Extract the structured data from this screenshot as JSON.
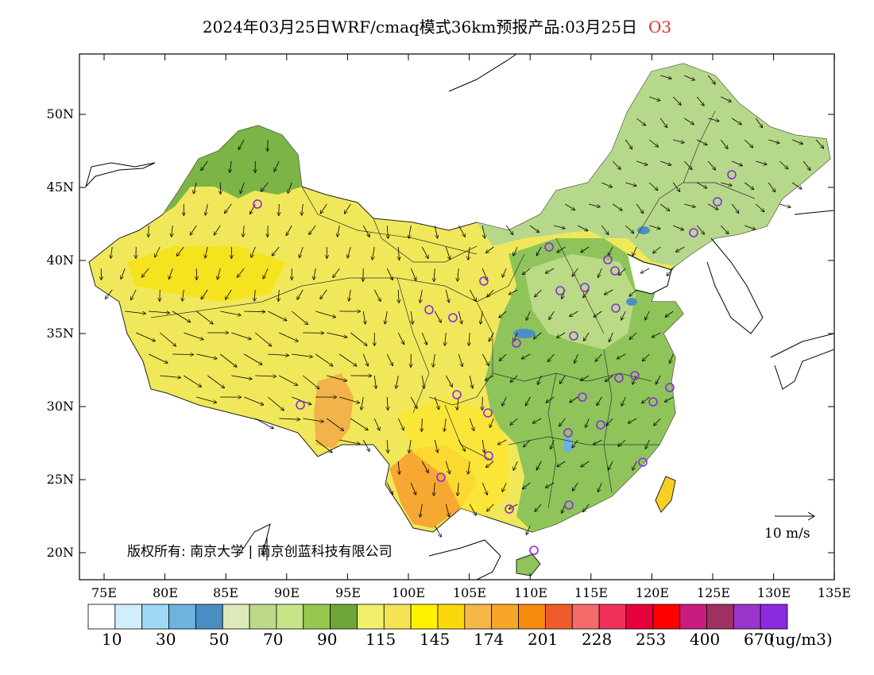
{
  "title": {
    "main": "2024年03月25日WRF/cmaq模式36km预报产品:03月25日",
    "pollutant": "O3"
  },
  "lat_labels": [
    "50N",
    "45N",
    "40N",
    "35N",
    "30N",
    "25N",
    "20N"
  ],
  "lon_labels": [
    "75E",
    "80E",
    "85E",
    "90E",
    "95E",
    "100E",
    "105E",
    "110E",
    "115E",
    "120E",
    "125E",
    "130E",
    "135E"
  ],
  "legend": {
    "labels": [
      "10",
      "30",
      "50",
      "70",
      "90",
      "115",
      "145",
      "174",
      "201",
      "228",
      "253",
      "400",
      "670"
    ],
    "unit": "(ug/m3)",
    "colors": [
      "#ffffff",
      "#d2eefb",
      "#9ed8f4",
      "#6cb3e0",
      "#4a8fc4",
      "#dde9b8",
      "#bcd98a",
      "#c8e487",
      "#96c84f",
      "#6fa63a",
      "#f0f06a",
      "#f4e455",
      "#fff200",
      "#fbd80c",
      "#f6b648",
      "#f8a627",
      "#f68b0e",
      "#f15a2b",
      "#f56a6b",
      "#f0305a",
      "#e8003c",
      "#ff0000",
      "#c91a80",
      "#a03060",
      "#9b34c8",
      "#8c2ae0"
    ]
  },
  "scale": {
    "label": "10 m/s"
  },
  "copyright": "版权所有: 南京大学 | 南京创蓝科技有限公司"
}
